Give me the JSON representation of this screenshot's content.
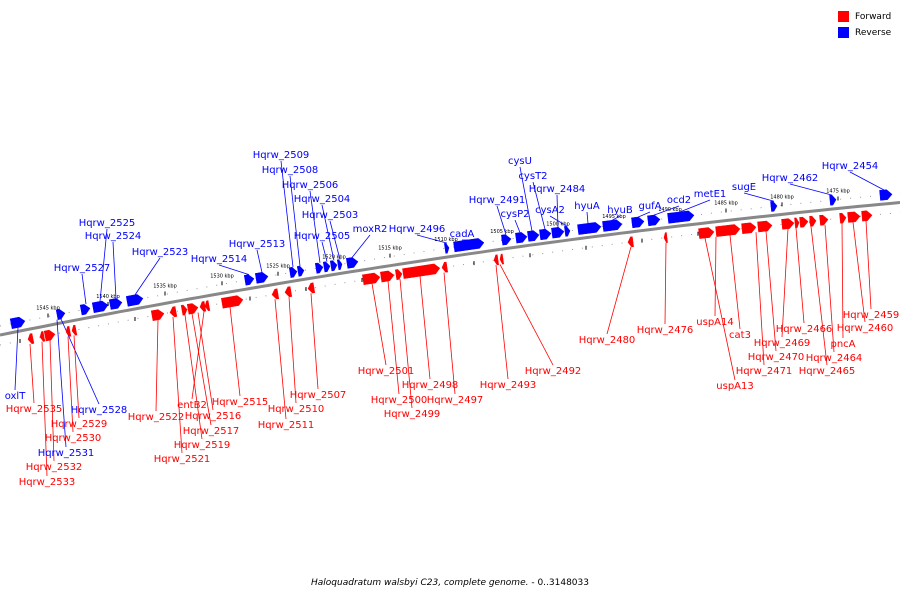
{
  "legend": [
    {
      "label": "Forward",
      "color": "#ff0000"
    },
    {
      "label": "Reverse",
      "color": "#0000ff"
    }
  ],
  "caption": {
    "organism": "Haloquadratum walsbyi C23, complete genome.",
    "range": " - 0..3148033"
  },
  "colors": {
    "forward": "#ff0000",
    "reverse": "#0000ff",
    "backbone": "#888888"
  },
  "ticks": [
    "1545 kbp",
    "1540 kbp",
    "1535 kbp",
    "1530 kbp",
    "1525 kbp",
    "1520 kbp",
    "1515 kbp",
    "1510 kbp",
    "1505 kbp",
    "1500 kbp",
    "1495 kbp",
    "1490 kbp",
    "1485 kbp",
    "1480 kbp",
    "1475 kbp"
  ],
  "reverse_genes": [
    "Hqrw_2454",
    "Hqrw_2462",
    "sugE",
    "metE1",
    "ocd2",
    "gufA",
    "hyuB",
    "hyuA",
    "cysA2",
    "Hqrw_2484",
    "cysT2",
    "cysU",
    "cysP2",
    "Hqrw_2491",
    "cadA",
    "Hqrw_2496",
    "moxR2",
    "Hqrw_2503",
    "Hqrw_2504",
    "Hqrw_2505",
    "Hqrw_2506",
    "Hqrw_2508",
    "Hqrw_2509",
    "Hqrw_2513",
    "Hqrw_2514",
    "Hqrw_2523",
    "Hqrw_2524",
    "Hqrw_2525",
    "Hqrw_2527",
    "Hqrw_2528",
    "Hqrw_2531",
    "oxlT"
  ],
  "forward_genes": [
    "Hqrw_2459",
    "Hqrw_2460",
    "pncA",
    "Hqrw_2464",
    "Hqrw_2465",
    "Hqrw_2466",
    "Hqrw_2469",
    "Hqrw_2470",
    "Hqrw_2471",
    "cat3",
    "uspA14",
    "uspA13",
    "Hqrw_2476",
    "Hqrw_2480",
    "Hqrw_2492",
    "Hqrw_2493",
    "Hqrw_2497",
    "Hqrw_2498",
    "Hqrw_2499",
    "Hqrw_2500",
    "Hqrw_2501",
    "Hqrw_2507",
    "Hqrw_2510",
    "Hqrw_2511",
    "Hqrw_2515",
    "entB2",
    "Hqrw_2516",
    "Hqrw_2517",
    "Hqrw_2519",
    "Hqrw_2521",
    "Hqrw_2522",
    "Hqrw_2529",
    "Hqrw_2530",
    "Hqrw_2532",
    "Hqrw_2533",
    "Hqrw_2535"
  ]
}
